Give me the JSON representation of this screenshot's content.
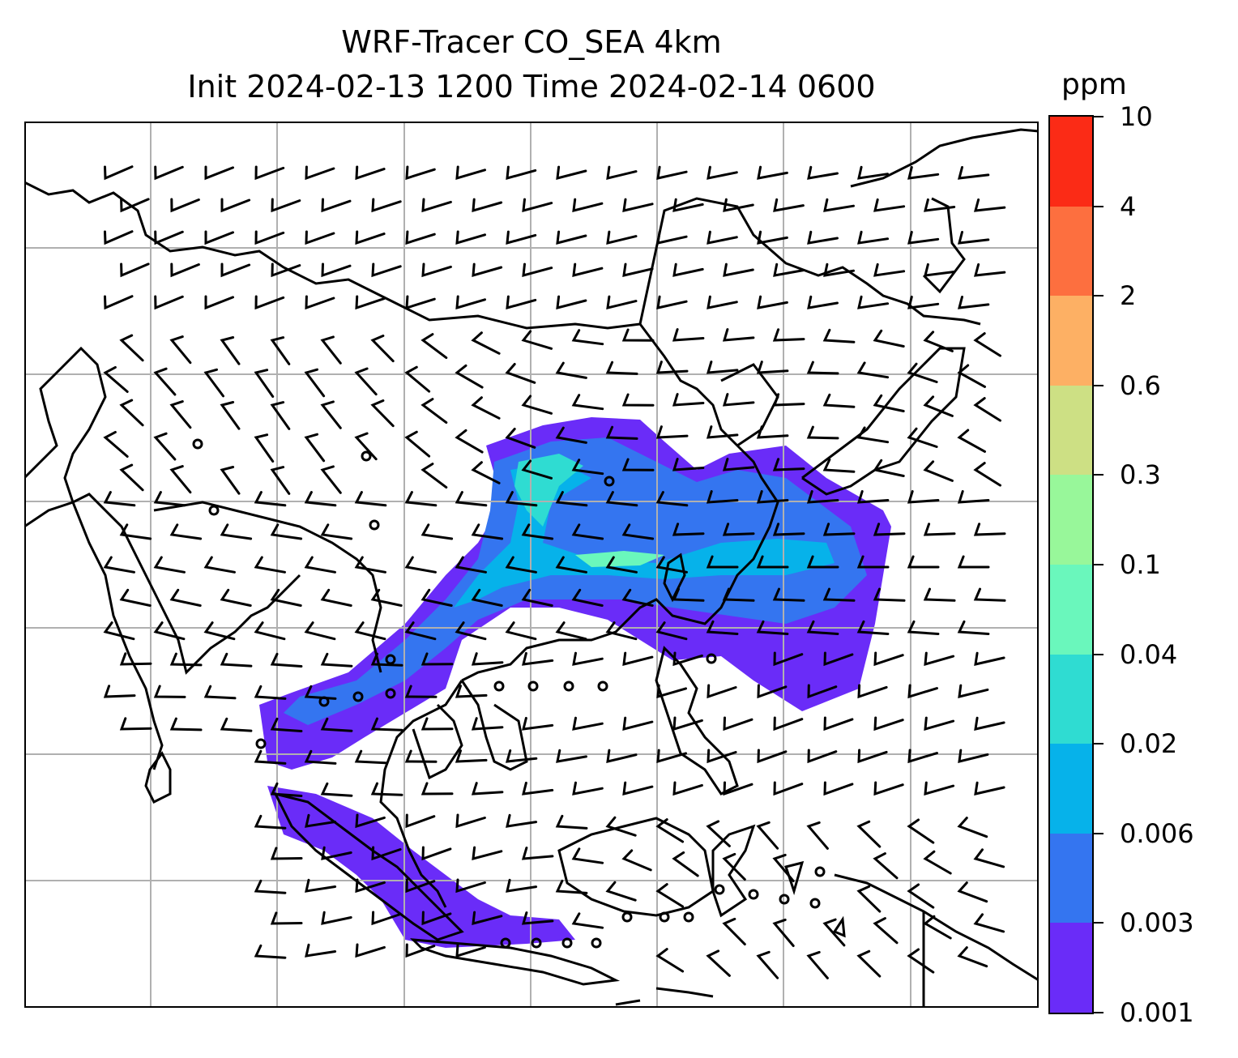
{
  "title": {
    "line1": "WRF-Tracer CO_SEA 4km",
    "line2": "Init 2024-02-13 1200 Time 2024-02-14 0600"
  },
  "colorbar": {
    "units": "ppm",
    "levels": [
      "0.001",
      "0.003",
      "0.006",
      "0.02",
      "0.04",
      "0.1",
      "0.3",
      "0.6",
      "2",
      "4",
      "10"
    ],
    "colors": [
      "#6a2cf8",
      "#3475f0",
      "#06b2ea",
      "#2fdcd2",
      "#6af7bc",
      "#98f79a",
      "#cde084",
      "#fdb064",
      "#fd6f3f",
      "#fb2b16"
    ]
  },
  "map": {
    "gridlines": true,
    "coastline_color": "#000000",
    "grid_color": "#b0b0b0",
    "plume_colors": [
      "#6a2cf8",
      "#3475f0",
      "#06b2ea",
      "#2fdcd2",
      "#6af7bc"
    ],
    "wind_barb_color": "#000000"
  }
}
